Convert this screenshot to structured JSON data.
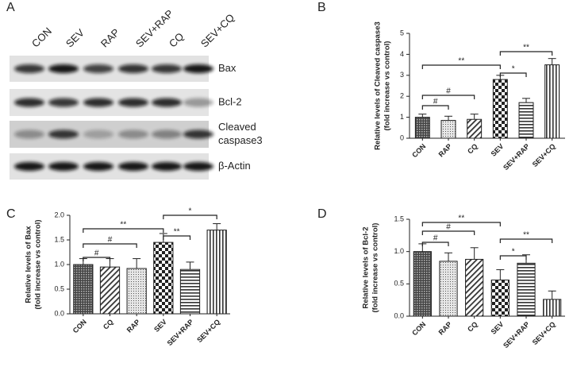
{
  "panel_a": {
    "label": "A",
    "lanes": [
      "CON",
      "SEV",
      "RAP",
      "SEV+RAP",
      "CQ",
      "SEV+CQ"
    ],
    "blots": [
      [
        "Bax"
      ],
      [
        "Bcl-2"
      ],
      [
        "Cleaved",
        "caspase3"
      ],
      [
        "β-Actin"
      ]
    ]
  },
  "chart_data": [
    {
      "type": "bar",
      "label": "B",
      "ylabel": [
        "Relative levels of Cleaved caspase3",
        "(fold increase vs control)"
      ],
      "categories": [
        "CON",
        "RAP",
        "CQ",
        "SEV",
        "SEV+RAP",
        "SEV+CQ"
      ],
      "values": [
        1.0,
        0.85,
        0.9,
        2.8,
        1.7,
        3.5
      ],
      "errors": [
        0.15,
        0.2,
        0.25,
        0.2,
        0.2,
        0.3
      ],
      "ylim": [
        0,
        5
      ],
      "yticks": [
        0,
        1,
        2,
        3,
        4,
        5
      ],
      "annotations": [
        {
          "text": "#",
          "between": [
            "CON",
            "RAP"
          ]
        },
        {
          "text": "#",
          "between": [
            "CON",
            "CQ"
          ]
        },
        {
          "text": "**",
          "between": [
            "CON",
            "SEV"
          ]
        },
        {
          "text": "*",
          "between": [
            "SEV",
            "SEV+RAP"
          ]
        },
        {
          "text": "**",
          "between": [
            "SEV",
            "SEV+CQ"
          ]
        }
      ]
    },
    {
      "type": "bar",
      "label": "C",
      "ylabel": [
        "Relative levels of Bax",
        "(fold increase vs control)"
      ],
      "categories": [
        "CON",
        "CQ",
        "RAP",
        "SEV",
        "SEV+RAP",
        "SEV+CQ"
      ],
      "values": [
        1.0,
        0.95,
        0.92,
        1.45,
        0.9,
        1.7
      ],
      "errors": [
        0.12,
        0.17,
        0.2,
        0.18,
        0.15,
        0.13
      ],
      "ylim": [
        0,
        2
      ],
      "yticks": [
        {
          "value": 0,
          "label": "0.0"
        },
        {
          "value": 0.5,
          "label": "0.5"
        },
        {
          "value": 1,
          "label": "1.0"
        },
        {
          "value": 1.5,
          "label": "1.5"
        },
        {
          "value": 2,
          "label": "2.0"
        }
      ],
      "annotations": [
        {
          "text": "#",
          "between": [
            "CON",
            "CQ"
          ]
        },
        {
          "text": "#",
          "between": [
            "CON",
            "RAP"
          ]
        },
        {
          "text": "**",
          "between": [
            "CON",
            "SEV"
          ]
        },
        {
          "text": "**",
          "between": [
            "SEV",
            "SEV+RAP"
          ]
        },
        {
          "text": "*",
          "between": [
            "SEV",
            "SEV+CQ"
          ]
        }
      ]
    },
    {
      "type": "bar",
      "label": "D",
      "ylabel": [
        "Relative levels of Bcl-2",
        "(fold increase vs control)"
      ],
      "categories": [
        "CON",
        "RAP",
        "CQ",
        "SEV",
        "SEV+RAP",
        "SEV+CQ"
      ],
      "values": [
        1.0,
        0.85,
        0.88,
        0.56,
        0.82,
        0.26
      ],
      "errors": [
        0.12,
        0.13,
        0.18,
        0.16,
        0.13,
        0.13
      ],
      "ylim": [
        0,
        1.5
      ],
      "yticks": [
        {
          "value": 0,
          "label": "0.0"
        },
        {
          "value": 0.5,
          "label": "0.5"
        },
        {
          "value": 1,
          "label": "1.0"
        },
        {
          "value": 1.5,
          "label": "1.5"
        }
      ],
      "annotations": [
        {
          "text": "#",
          "between": [
            "CON",
            "RAP"
          ]
        },
        {
          "text": "#",
          "between": [
            "CON",
            "CQ"
          ]
        },
        {
          "text": "**",
          "between": [
            "CON",
            "SEV"
          ]
        },
        {
          "text": "*",
          "between": [
            "SEV",
            "SEV+RAP"
          ]
        },
        {
          "text": "**",
          "between": [
            "SEV",
            "SEV+CQ"
          ]
        }
      ]
    }
  ]
}
